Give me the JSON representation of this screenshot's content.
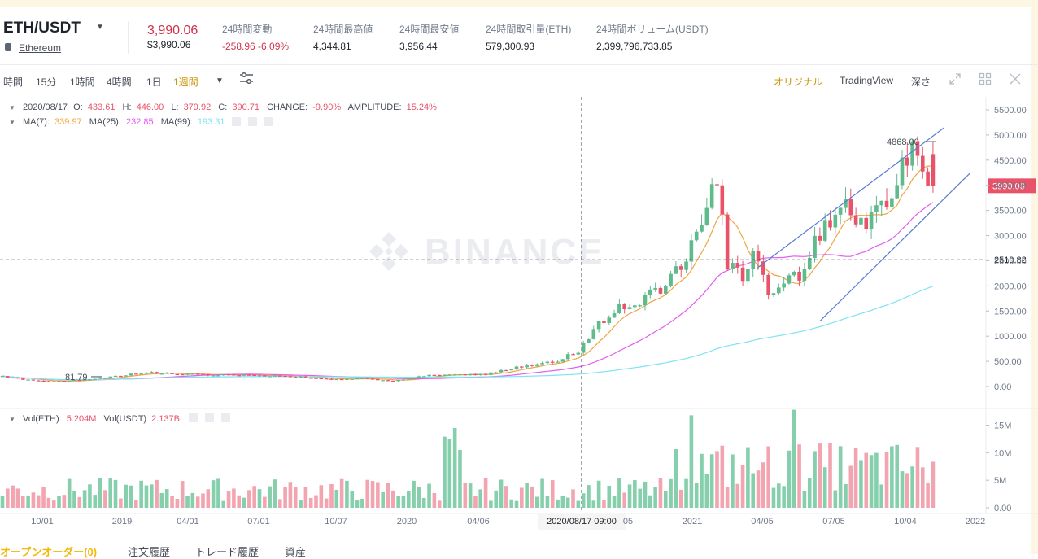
{
  "header": {
    "pair": "ETH/USDT",
    "coin_name": "Ethereum",
    "last_price": "3,990.06",
    "last_price_usd": "$3,990.06",
    "stats": [
      {
        "label": "24時間変動",
        "value": "-258.96 -6.09%",
        "negative": true
      },
      {
        "label": "24時間最高値",
        "value": "4,344.81"
      },
      {
        "label": "24時間最安値",
        "value": "3,956.44"
      },
      {
        "label": "24時間取引量(ETH)",
        "value": "579,300.93"
      },
      {
        "label": "24時間ボリューム(USDT)",
        "value": "2,399,796,733.85"
      }
    ]
  },
  "toolbar": {
    "intervals": [
      "時間",
      "15分",
      "1時間",
      "4時間",
      "1日",
      "1週間"
    ],
    "active_interval": "1週間",
    "views": [
      "オリジナル",
      "TradingView",
      "深さ"
    ],
    "active_view": "オリジナル",
    "icons": [
      "caret-down-icon",
      "settings-sliders-icon",
      "expand-icon",
      "grid-icon",
      "close-icon"
    ]
  },
  "legend": {
    "ohlc_date": "2020/08/17",
    "o_label": "O:",
    "o_value": "433.61",
    "h_label": "H:",
    "h_value": "446.00",
    "l_label": "L:",
    "l_value": "379.92",
    "c_label": "C:",
    "c_value": "390.71",
    "change_label": "CHANGE:",
    "change_value": "-9.90%",
    "amp_label": "AMPLITUDE:",
    "amp_value": "15.24%",
    "ma7_label": "MA(7):",
    "ma7_value": "339.97",
    "ma25_label": "MA(25):",
    "ma25_value": "232.85",
    "ma99_label": "MA(99):",
    "ma99_value": "193.31",
    "vol_eth_label": "Vol(ETH):",
    "vol_eth_value": "5.204M",
    "vol_usdt_label": "Vol(USDT)",
    "vol_usdt_value": "2.137B"
  },
  "colors": {
    "up": "#5fba8c",
    "down": "#e8536a",
    "vol_up": "#86cfac",
    "vol_down": "#f2a5b0",
    "ma7": "#f0a441",
    "ma25": "#e45cf0",
    "ma99": "#7fe3f0",
    "trend": "#5b7bd5",
    "accent": "#f0b90b"
  },
  "chart_data": {
    "type": "candlestick",
    "watermark": "BINANCE",
    "price_axis": [
      "5500.00",
      "5000.00",
      "4500.00",
      "4000.00",
      "3500.00",
      "3000.00",
      "2500.00",
      "2000.00",
      "1500.00",
      "1000.00",
      "500.00",
      "0.00"
    ],
    "ylim": [
      0,
      5500
    ],
    "time_axis": [
      "10/01",
      "2019",
      "04/01",
      "07/01",
      "10/07",
      "2020",
      "04/06",
      "05",
      "2021",
      "04/05",
      "07/05",
      "10/04",
      "2022"
    ],
    "volume_axis": [
      "15M",
      "10M",
      "5M",
      "0.00"
    ],
    "volume_ylim": [
      0,
      17000000
    ],
    "current_price_label": "3990.06",
    "current_price": 3990.06,
    "crosshair_price_label": "2519.82",
    "crosshair_price": 2519.82,
    "crosshair_time_label": "2020/08/17 09:00",
    "annotations": [
      {
        "text": "4868.00",
        "price": 4868
      },
      {
        "text": "81.79",
        "price": 81.79
      }
    ]
  },
  "tabs": [
    {
      "label": "オープンオーダー(0)",
      "active": true
    },
    {
      "label": "注文履歴"
    },
    {
      "label": "トレード履歴"
    },
    {
      "label": "資産"
    }
  ]
}
